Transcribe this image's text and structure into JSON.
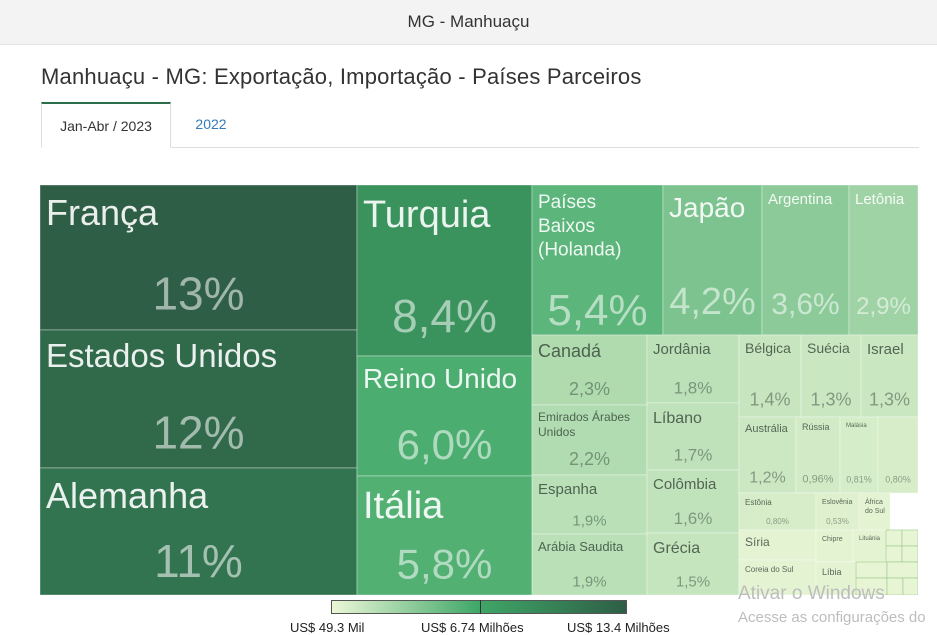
{
  "header": {
    "title": "MG - Manhuaçu"
  },
  "page_title": "Manhuaçu - MG: Exportação, Importação - Países Parceiros",
  "tabs": [
    {
      "label": "Jan-Abr / 2023",
      "active": true
    },
    {
      "label": "2022",
      "active": false
    }
  ],
  "colors": {
    "darkest": "#2e5e46",
    "mid": "#3fa767",
    "lightest": "#ecf7d7",
    "tab_link": "#337ab7"
  },
  "chart_data": {
    "type": "treemap",
    "unit": "%",
    "items": [
      {
        "name": "França",
        "label": "13%",
        "value": 13
      },
      {
        "name": "Estados Unidos",
        "label": "12%",
        "value": 12
      },
      {
        "name": "Alemanha",
        "label": "11%",
        "value": 11
      },
      {
        "name": "Turquia",
        "label": "8,4%",
        "value": 8.4
      },
      {
        "name": "Reino Unido",
        "label": "6,0%",
        "value": 6.0
      },
      {
        "name": "Itália",
        "label": "5,8%",
        "value": 5.8
      },
      {
        "name": "Países Baixos (Holanda)",
        "label": "5,4%",
        "value": 5.4
      },
      {
        "name": "Japão",
        "label": "4,2%",
        "value": 4.2
      },
      {
        "name": "Argentina",
        "label": "3,6%",
        "value": 3.6
      },
      {
        "name": "Letônia",
        "label": "2,9%",
        "value": 2.9
      },
      {
        "name": "Canadá",
        "label": "2,3%",
        "value": 2.3
      },
      {
        "name": "Emirados Árabes Unidos",
        "label": "2,2%",
        "value": 2.2
      },
      {
        "name": "Espanha",
        "label": "1,9%",
        "value": 1.9
      },
      {
        "name": "Arábia Saudita",
        "label": "1,9%",
        "value": 1.9
      },
      {
        "name": "Jordânia",
        "label": "1,8%",
        "value": 1.8
      },
      {
        "name": "Líbano",
        "label": "1,7%",
        "value": 1.7
      },
      {
        "name": "Colômbia",
        "label": "1,6%",
        "value": 1.6
      },
      {
        "name": "Grécia",
        "label": "1,5%",
        "value": 1.5
      },
      {
        "name": "Bélgica",
        "label": "1,4%",
        "value": 1.4
      },
      {
        "name": "Suécia",
        "label": "1,3%",
        "value": 1.3
      },
      {
        "name": "Israel",
        "label": "1,3%",
        "value": 1.3
      },
      {
        "name": "Austrália",
        "label": "1,2%",
        "value": 1.2
      },
      {
        "name": "Rússia",
        "label": "0,96%",
        "value": 0.96
      },
      {
        "name": "Malásia",
        "label": "0,81%",
        "value": 0.81
      },
      {
        "name": "",
        "label": "0,80%",
        "value": 0.8
      },
      {
        "name": "Estônia",
        "label": "0,80%",
        "value": 0.8
      },
      {
        "name": "Eslovênia",
        "label": "0,53%",
        "value": 0.53
      },
      {
        "name": "África do Sul",
        "label": "",
        "value": null
      },
      {
        "name": "Síria",
        "label": "",
        "value": null
      },
      {
        "name": "Coreia do Sul",
        "label": "",
        "value": null
      },
      {
        "name": "Chipre",
        "label": "",
        "value": null
      },
      {
        "name": "Lituânia",
        "label": "",
        "value": null
      },
      {
        "name": "Líbia",
        "label": "",
        "value": null
      }
    ]
  },
  "legend": {
    "labels": [
      "US$ 49.3 Mil",
      "US$ 6.74 Milhões",
      "US$ 13.4 Milhões"
    ]
  },
  "watermark": {
    "line1": "Ativar o Windows",
    "line2": "Acesse as configurações do"
  }
}
